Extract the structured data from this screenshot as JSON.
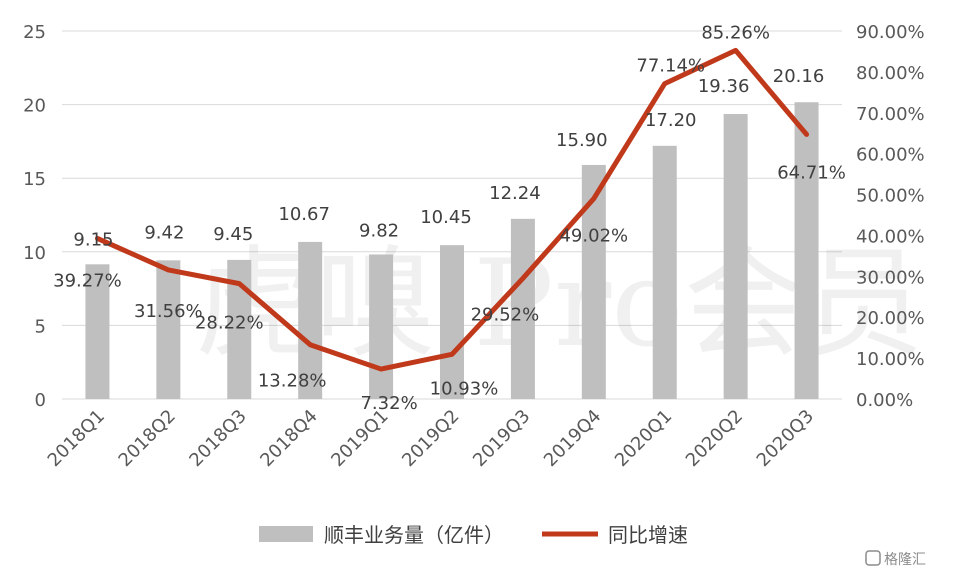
{
  "chart_data": {
    "type": "bar+line",
    "categories": [
      "2018Q1",
      "2018Q2",
      "2018Q3",
      "2018Q4",
      "2019Q1",
      "2019Q2",
      "2019Q3",
      "2019Q4",
      "2020Q1",
      "2020Q2",
      "2020Q3"
    ],
    "series": [
      {
        "name": "顺丰业务量（亿件）",
        "type": "bar",
        "axis": "left",
        "color": "#BFBFBF",
        "values": [
          9.15,
          9.42,
          9.45,
          10.67,
          9.82,
          10.45,
          12.24,
          15.9,
          17.2,
          19.36,
          20.16
        ],
        "labels": [
          "9.15",
          "9.42",
          "9.45",
          "10.67",
          "9.82",
          "10.45",
          "12.24",
          "15.90",
          "17.20",
          "19.36",
          "20.16"
        ]
      },
      {
        "name": "同比增速",
        "type": "line",
        "axis": "right",
        "color": "#C0391B",
        "values": [
          39.27,
          31.56,
          28.22,
          13.28,
          7.32,
          10.93,
          29.52,
          49.02,
          77.14,
          85.26,
          64.71
        ],
        "labels": [
          "39.27%",
          "31.56%",
          "28.22%",
          "13.28%",
          "7.32%",
          "10.93%",
          "29.52%",
          "49.02%",
          "77.14%",
          "85.26%",
          "64.71%"
        ]
      }
    ],
    "left_axis": {
      "ylim": [
        0,
        25
      ],
      "ticks": [
        0,
        5,
        10,
        15,
        20,
        25
      ],
      "tick_labels": [
        "0",
        "5",
        "10",
        "15",
        "20",
        "25"
      ]
    },
    "right_axis": {
      "ylim": [
        0,
        90
      ],
      "ticks": [
        0,
        10,
        20,
        30,
        40,
        50,
        60,
        70,
        80,
        90
      ],
      "tick_labels": [
        "0.00%",
        "10.00%",
        "20.00%",
        "30.00%",
        "40.00%",
        "50.00%",
        "60.00%",
        "70.00%",
        "80.00%",
        "90.00%"
      ]
    },
    "grid": true,
    "legend_position": "bottom",
    "title": "",
    "xlabel": "",
    "ylabel": ""
  },
  "watermark": {
    "text": "虎嗅 Pro会员",
    "brand": "格隆汇"
  }
}
